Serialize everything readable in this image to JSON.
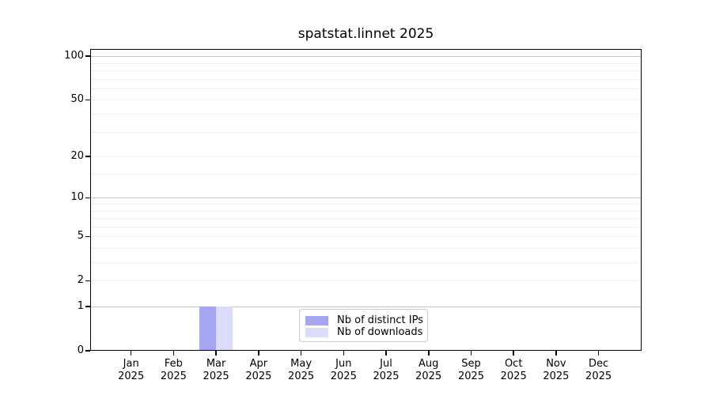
{
  "chart_data": {
    "type": "bar",
    "title": "spatstat.linnet 2025",
    "categories": [
      "Jan 2025",
      "Feb 2025",
      "Mar 2025",
      "Apr 2025",
      "May 2025",
      "Jun 2025",
      "Jul 2025",
      "Aug 2025",
      "Sep 2025",
      "Oct 2025",
      "Nov 2025",
      "Dec 2025"
    ],
    "series": [
      {
        "name": "Nb of distinct IPs",
        "color": "#a5a5f2",
        "values": [
          0,
          0,
          1,
          0,
          0,
          0,
          0,
          0,
          0,
          0,
          0,
          0
        ]
      },
      {
        "name": "Nb of downloads",
        "color": "#dadcf9",
        "values": [
          0,
          0,
          1,
          0,
          0,
          0,
          0,
          0,
          0,
          0,
          0,
          0
        ]
      }
    ],
    "xlabel": "",
    "ylabel": "",
    "yscale": "log1p",
    "ylim": [
      0,
      112
    ],
    "yticks": [
      0,
      1,
      2,
      5,
      10,
      20,
      50,
      100
    ],
    "minor_yticks": [
      3,
      4,
      6,
      7,
      8,
      9,
      15,
      30,
      40,
      60,
      70,
      80,
      90
    ],
    "emphasized_gridlines": [
      1,
      10,
      100
    ],
    "grid": "on",
    "legend_position": "lower center"
  }
}
